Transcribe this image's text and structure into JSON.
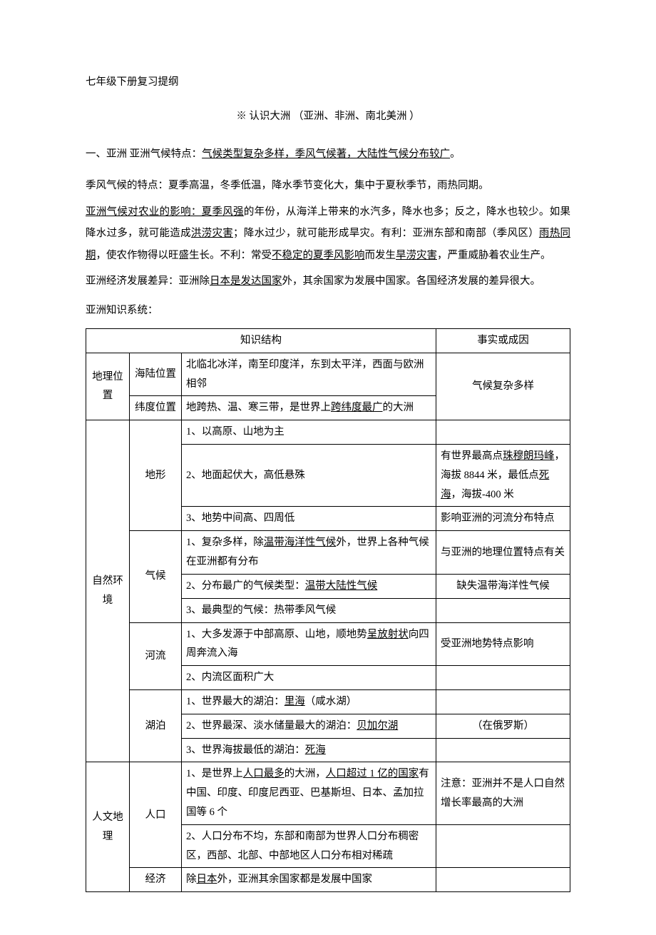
{
  "title": "七年级下册复习提纲",
  "subtitle": "※ 认识大洲 （亚洲、非洲、南北美洲 ）",
  "sec1_prefix": " 一、亚洲     亚洲气候特点：",
  "sec1_underline": "气候类型复杂多样，季风气候著，大陆性气候分布较广",
  "sec1_suffix": "。",
  "p1": "季风气候的特点：夏季高温，冬季低温，降水季节变化大，集中于夏秋季节，雨热同期。",
  "p2_a": "亚洲气候对农业的影响",
  "p2_b": "：夏季风强",
  "p2_c": "的年份，从海洋上带来的水汽多，降水也多；反之，降水也较少。如果降水过多，就可能造成",
  "p2_d": "洪涝灾害",
  "p2_e": "；降水过少，就可能形成旱灾。有利：亚洲东部和南部（季风区）",
  "p2_f": "雨热同期",
  "p2_g": "，使农作物得以旺盛生长。不利：常受",
  "p2_h": "不稳定的夏季风影响",
  "p2_i": "而发生",
  "p2_j": "旱涝灾害",
  "p2_k": "，严重威胁着农业生产。",
  "p3_a": "亚洲经济发展差异：亚洲除",
  "p3_b": "日本是发达国家",
  "p3_c": "外，其余国家为发展中国家。各国经济发展的差异很大。",
  "p4": "亚洲知识系统：",
  "th_struct": "知识结构",
  "th_fact": "事实或成因",
  "r_geo": "地理位置",
  "r_sealand": "海陆位置",
  "r_sealand_c": "北临北冰洋，南至印度洋，东到太平洋，西面与欧洲相邻",
  "r_lat": "纬度位置",
  "r_lat_c_a": "地跨热、温、寒三带，是世界上",
  "r_lat_c_b": "跨纬度最广",
  "r_lat_c_c": "的大洲",
  "r_geo_fact": "气候复杂多样",
  "r_nat": "自然环境",
  "r_terrain": "地形",
  "r_t1": "1、以高原、山地为主",
  "r_t2": "2、地面起伏大，高低悬殊",
  "r_t2_f_a": "有世界最高点",
  "r_t2_f_b": "珠穆朗玛峰",
  "r_t2_f_c": "，海拔 8844 米，最低点",
  "r_t2_f_d": "死海",
  "r_t2_f_e": "，海拔-400 米",
  "r_t3": "3、地势中间高、四周低",
  "r_t3_f": "影响亚洲的河流分布特点",
  "r_clim": "气候",
  "r_c1_a": "1、复杂多样，除",
  "r_c1_b": "温带海洋性气候",
  "r_c1_c": "外，世界上各种气候在亚洲都有分布",
  "r_c1_f": "与亚洲的地理位置特点有关",
  "r_c2_a": "2、分布最广的气候类型：",
  "r_c2_b": "温带大陆性气候",
  "r_c2_f": "缺失温带海洋性气候",
  "r_c3": "3、最典型的气候：热带季风气候",
  "r_riv": "河流",
  "r_r1_a": "1、大多发源于中部高原、山地，顺地势",
  "r_r1_b": "呈放射状",
  "r_r1_c": "向四周奔流入海",
  "r_r1_f": "受亚洲地势特点影响",
  "r_r2": "2、内流区面积广大",
  "r_lake": "湖泊",
  "r_l1_a": "1、世界最大的湖泊：",
  "r_l1_b": "里海",
  "r_l1_c": "（咸水湖）",
  "r_l2_a": "2、世界最深、淡水储量最大的湖泊：",
  "r_l2_b": "贝加尔湖",
  "r_l2_f": "（在俄罗斯）",
  "r_l3_a": "3、世界海拔最低的湖泊：",
  "r_l3_b": "死海",
  "r_hum": "人文地理",
  "r_pop": "人口",
  "r_p1_a": "1、是世界上",
  "r_p1_b": "人口最多",
  "r_p1_c": "的大洲，",
  "r_p1_d": "人口超过 1 亿的国家",
  "r_p1_e": "有中国、印度、印度尼西亚、巴基斯坦、日本、孟加拉国等 6 个",
  "r_p1_f": "注意：亚洲并不是人口自然增长率最高的大洲",
  "r_p2": "2、人口分布不均，东部和南部为世界人口分布稠密区，西部、北部、中部地区人口分布相对稀疏",
  "r_econ": "经济",
  "r_e_a": "除",
  "r_e_b": "日本",
  "r_e_c": "外，亚洲其余国家都是发展中国家"
}
